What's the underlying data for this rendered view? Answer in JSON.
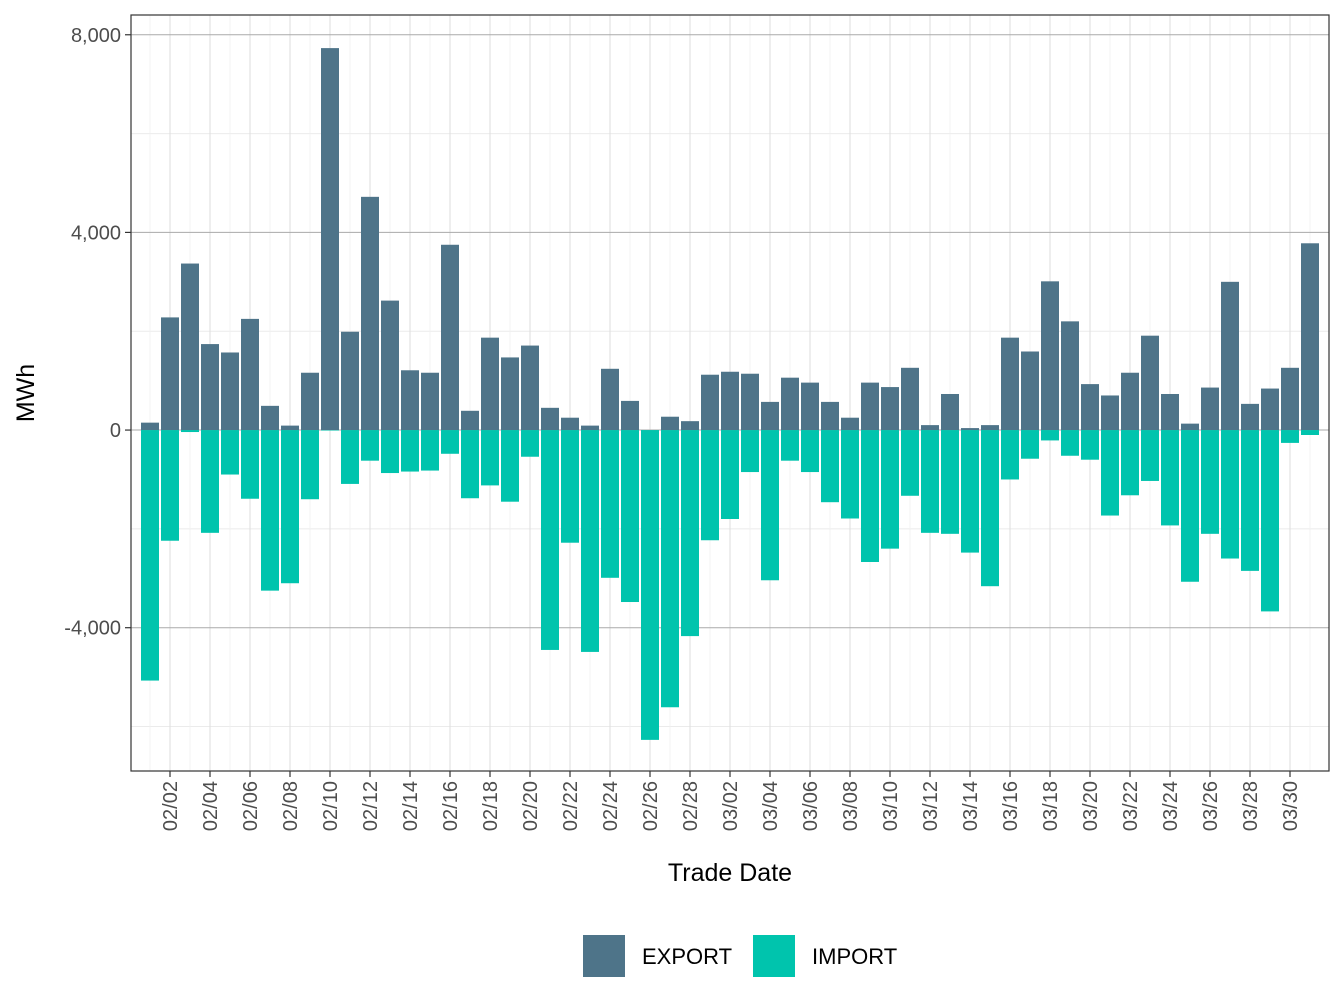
{
  "chart_data": {
    "type": "bar",
    "stacking": "diverging",
    "xlabel": "Trade Date",
    "ylabel": "MWh",
    "ylim": [
      -6900,
      8400
    ],
    "y_ticks": [
      -4000,
      0,
      4000,
      8000
    ],
    "y_tick_labels": [
      "-4,000",
      "0",
      "4,000",
      "8,000"
    ],
    "y_minor_ticks": [
      -6000,
      -2000,
      2000,
      6000
    ],
    "grid": true,
    "legend_position": "bottom",
    "x_tick_labels": [
      "02/02",
      "02/04",
      "02/06",
      "02/08",
      "02/10",
      "02/12",
      "02/14",
      "02/16",
      "02/18",
      "02/20",
      "02/22",
      "02/24",
      "02/26",
      "02/28",
      "03/02",
      "03/04",
      "03/06",
      "03/08",
      "03/10",
      "03/12",
      "03/14",
      "03/16",
      "03/18",
      "03/20",
      "03/22",
      "03/24",
      "03/26",
      "03/28",
      "03/30"
    ],
    "categories": [
      "02/01",
      "02/02",
      "02/03",
      "02/04",
      "02/05",
      "02/06",
      "02/07",
      "02/08",
      "02/09",
      "02/10",
      "02/11",
      "02/12",
      "02/13",
      "02/14",
      "02/15",
      "02/16",
      "02/17",
      "02/18",
      "02/19",
      "02/20",
      "02/21",
      "02/22",
      "02/23",
      "02/24",
      "02/25",
      "02/26",
      "02/27",
      "02/28",
      "03/01",
      "03/02",
      "03/03",
      "03/04",
      "03/05",
      "03/06",
      "03/07",
      "03/08",
      "03/09",
      "03/10",
      "03/11",
      "03/12",
      "03/13",
      "03/14",
      "03/15",
      "03/16",
      "03/17",
      "03/18",
      "03/19",
      "03/20",
      "03/21",
      "03/22",
      "03/23",
      "03/24",
      "03/25",
      "03/26",
      "03/27",
      "03/28",
      "03/29",
      "03/30",
      "03/31"
    ],
    "series": [
      {
        "name": "EXPORT",
        "color": "#4e7489",
        "values": [
          150,
          2280,
          3370,
          1740,
          1570,
          2250,
          490,
          90,
          1160,
          7730,
          1990,
          4720,
          2620,
          1210,
          1160,
          3750,
          390,
          1870,
          1470,
          1710,
          450,
          250,
          90,
          1240,
          590,
          0,
          270,
          180,
          1120,
          1180,
          1140,
          570,
          1060,
          960,
          570,
          250,
          960,
          870,
          1260,
          100,
          730,
          40,
          100,
          1870,
          1590,
          3010,
          2200,
          930,
          700,
          1160,
          1910,
          730,
          130,
          860,
          3000,
          530,
          840,
          1260,
          3780
        ]
      },
      {
        "name": "IMPORT",
        "color": "#00c4ad",
        "values": [
          -5070,
          -2240,
          -40,
          -2080,
          -900,
          -1390,
          -3250,
          -3100,
          -1400,
          -10,
          -1090,
          -620,
          -870,
          -840,
          -820,
          -480,
          -1380,
          -1120,
          -1450,
          -540,
          -4450,
          -2280,
          -4490,
          -2990,
          -3480,
          -6270,
          -5610,
          -4170,
          -2230,
          -1800,
          -850,
          -3040,
          -620,
          -850,
          -1460,
          -1790,
          -2670,
          -2400,
          -1330,
          -2080,
          -2100,
          -2480,
          -3160,
          -1000,
          -580,
          -210,
          -520,
          -600,
          -1730,
          -1320,
          -1030,
          -1930,
          -3070,
          -2100,
          -2600,
          -2850,
          -3670,
          -260,
          -100
        ]
      }
    ]
  }
}
